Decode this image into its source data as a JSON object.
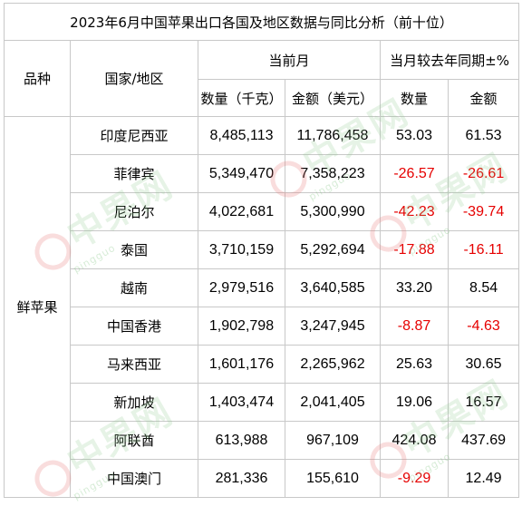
{
  "title": "2023年6月中国苹果出口各国及地区数据与同比分析（前十位）",
  "headers": {
    "variety": "品种",
    "country": "国家/地区",
    "current_month": "当前月",
    "yoy": "当月较去年同期±%",
    "quantity_kg": "数量（千克）",
    "amount_usd": "金额（美元）",
    "yoy_quantity": "数量",
    "yoy_amount": "金额"
  },
  "variety_value": "鲜苹果",
  "rows": [
    {
      "country": "印度尼西亚",
      "quantity": "8,485,113",
      "amount": "11,786,458",
      "yoy_qty": "53.03",
      "yoy_amt": "61.53"
    },
    {
      "country": "菲律宾",
      "quantity": "5,349,470",
      "amount": "7,358,223",
      "yoy_qty": "-26.57",
      "yoy_amt": "-26.61"
    },
    {
      "country": "尼泊尔",
      "quantity": "4,022,681",
      "amount": "5,300,990",
      "yoy_qty": "-42.23",
      "yoy_amt": "-39.74"
    },
    {
      "country": "泰国",
      "quantity": "3,710,159",
      "amount": "5,292,694",
      "yoy_qty": "-17.88",
      "yoy_amt": "-16.11"
    },
    {
      "country": "越南",
      "quantity": "2,979,516",
      "amount": "3,640,585",
      "yoy_qty": "33.20",
      "yoy_amt": "8.54"
    },
    {
      "country": "中国香港",
      "quantity": "1,902,798",
      "amount": "3,247,945",
      "yoy_qty": "-8.87",
      "yoy_amt": "-4.63"
    },
    {
      "country": "马来西亚",
      "quantity": "1,601,176",
      "amount": "2,265,962",
      "yoy_qty": "25.63",
      "yoy_amt": "30.65"
    },
    {
      "country": "新加坡",
      "quantity": "1,403,474",
      "amount": "2,041,405",
      "yoy_qty": "19.06",
      "yoy_amt": "16.57"
    },
    {
      "country": "阿联酋",
      "quantity": "613,988",
      "amount": "967,109",
      "yoy_qty": "424.08",
      "yoy_amt": "437.69"
    },
    {
      "country": "中国澳门",
      "quantity": "281,336",
      "amount": "155,610",
      "yoy_qty": "-9.29",
      "yoy_amt": "12.49"
    }
  ],
  "colors": {
    "negative": "#e60000",
    "positive": "#000000",
    "grid": "#c8c8c8"
  },
  "watermark": {
    "text": "中果网",
    "subtext": "pingguo"
  }
}
